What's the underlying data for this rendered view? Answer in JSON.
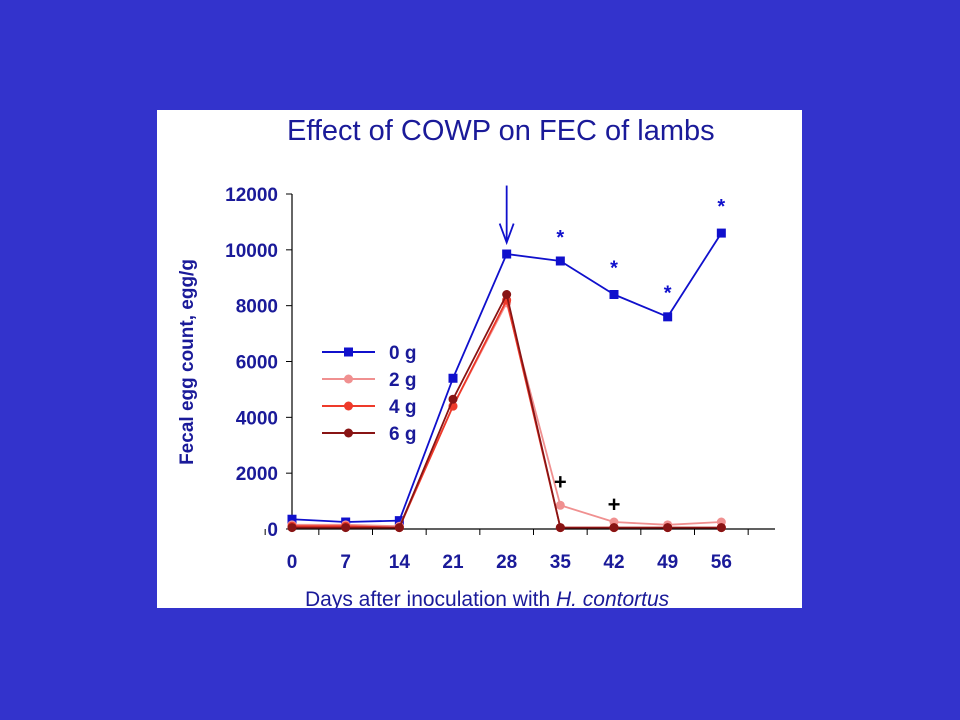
{
  "chart_data": {
    "type": "line",
    "title": "Effect of COWP on FEC of lambs",
    "ylabel": "Fecal egg count, egg/g",
    "xlabel_prefix": "Days after inoculation with ",
    "xlabel_italic": "H. contortus",
    "x": [
      0,
      7,
      14,
      21,
      28,
      35,
      42,
      49,
      56
    ],
    "xticks": [
      "0",
      "7",
      "14",
      "21",
      "28",
      "35",
      "42",
      "49",
      "56"
    ],
    "yticks": [
      "0",
      "2000",
      "4000",
      "6000",
      "8000",
      "10000",
      "12000"
    ],
    "ylim": [
      0,
      12000
    ],
    "grid": false,
    "legend_position": "center-left",
    "series": [
      {
        "name": "0 g",
        "color": "#1010cc",
        "marker": "square",
        "values": [
          350,
          250,
          300,
          5400,
          9850,
          9600,
          8400,
          7600,
          10600
        ]
      },
      {
        "name": "2 g",
        "color": "#f09090",
        "marker": "circle",
        "values": [
          150,
          150,
          100,
          4400,
          8100,
          850,
          250,
          150,
          250
        ]
      },
      {
        "name": "4 g",
        "color": "#ee3a2a",
        "marker": "circle",
        "values": [
          100,
          100,
          50,
          4400,
          8200,
          50,
          50,
          50,
          50
        ]
      },
      {
        "name": "6 g",
        "color": "#881414",
        "marker": "circle",
        "values": [
          50,
          50,
          50,
          4650,
          8400,
          50,
          50,
          50,
          50
        ]
      }
    ],
    "annotations": [
      {
        "text": "*",
        "x": 35,
        "y": 10500,
        "color": "#1010cc"
      },
      {
        "text": "*",
        "x": 42,
        "y": 9400,
        "color": "#1010cc"
      },
      {
        "text": "*",
        "x": 49,
        "y": 8500,
        "color": "#1010cc"
      },
      {
        "text": "*",
        "x": 56,
        "y": 11600,
        "color": "#1010cc"
      },
      {
        "text": "+",
        "x": 35,
        "y": 1700,
        "color": "#000000"
      },
      {
        "text": "+",
        "x": 42,
        "y": 900,
        "color": "#000000"
      },
      {
        "text": "↓",
        "x": 28,
        "y": 11300,
        "color": "#1010cc"
      }
    ]
  }
}
